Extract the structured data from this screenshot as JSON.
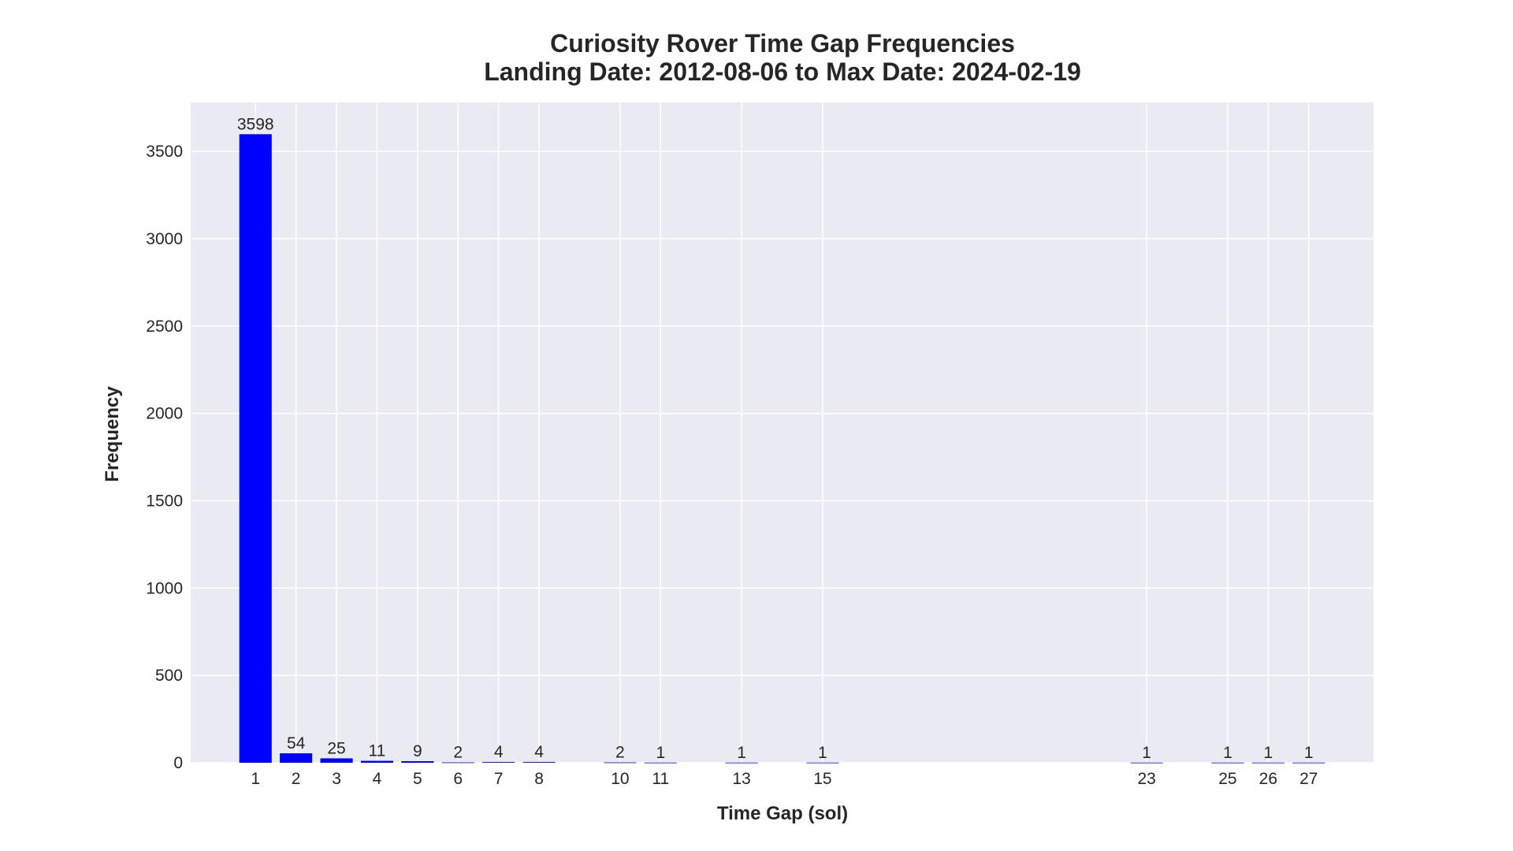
{
  "chart_data": {
    "type": "bar",
    "title": "Curiosity Rover Time Gap Frequencies",
    "subtitle": "Landing Date: 2012-08-06 to Max Date: 2024-02-19",
    "xlabel": "Time Gap (sol)",
    "ylabel": "Frequency",
    "x": [
      1,
      2,
      3,
      4,
      5,
      6,
      7,
      8,
      10,
      11,
      13,
      15,
      23,
      25,
      26,
      27
    ],
    "values": [
      3598,
      54,
      25,
      11,
      9,
      2,
      4,
      4,
      2,
      1,
      1,
      1,
      1,
      1,
      1,
      1
    ],
    "xlim": [
      -0.6,
      28.6
    ],
    "ylim": [
      0,
      3780
    ],
    "yticks": [
      0,
      500,
      1000,
      1500,
      2000,
      2500,
      3000,
      3500
    ],
    "grid": true,
    "legend": "none",
    "colors": {
      "bar": "#0000ff",
      "plot_bg": "#eaeaf2",
      "grid": "#ffffff",
      "text": "#262626"
    }
  }
}
